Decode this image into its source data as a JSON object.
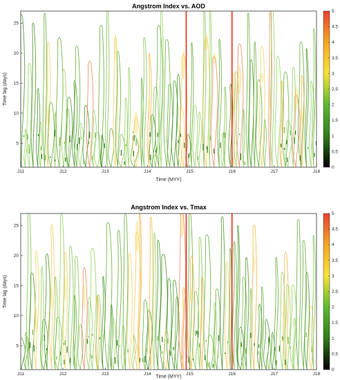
{
  "chart_data": [
    {
      "type": "heatmap",
      "subtype": "contour",
      "title": "Angstrom Index vs. AOD",
      "xlabel": "Time (MYY)",
      "ylabel": "Time lag (days)",
      "x_ticks": [
        "J11",
        "J12",
        "J13",
        "J14",
        "J15",
        "J16",
        "J17",
        "J18"
      ],
      "y_ticks": [
        5,
        10,
        15,
        20,
        25
      ],
      "ylim": [
        1,
        27
      ],
      "colorbar": {
        "range": [
          0,
          5
        ],
        "ticks": [
          "0",
          "0.5",
          "1",
          "1.5",
          "2",
          "2.5",
          "3",
          "3.5",
          "4",
          "4.5",
          "5"
        ],
        "colors": [
          "#000000",
          "#2e7d18",
          "#5cb82e",
          "#f7e23a",
          "#f5a623",
          "#e8412c"
        ]
      },
      "markers": [
        {
          "at": "J15",
          "offset_months": -1,
          "color": "#e8412c"
        },
        {
          "at": "J16",
          "offset_months": 0,
          "color": "#e8412c"
        }
      ],
      "contour_seed": 7
    },
    {
      "type": "heatmap",
      "subtype": "contour",
      "title": "Angstrom Index vs. Tmax",
      "xlabel": "Time (MYY)",
      "ylabel": "Time lag (days)",
      "x_ticks": [
        "J11",
        "J12",
        "J13",
        "J14",
        "J15",
        "J16",
        "J17",
        "J18"
      ],
      "y_ticks": [
        5,
        10,
        15,
        20,
        25
      ],
      "ylim": [
        1,
        27
      ],
      "colorbar": {
        "range": [
          0,
          5
        ],
        "ticks": [
          "0",
          "0.5",
          "1",
          "1.5",
          "2",
          "2.5",
          "3",
          "3.5",
          "4",
          "4.5",
          "5"
        ],
        "colors": [
          "#000000",
          "#2e7d18",
          "#5cb82e",
          "#f7e23a",
          "#f5a623",
          "#e8412c"
        ]
      },
      "markers": [
        {
          "at": "J15",
          "offset_months": -1,
          "color": "#e8412c"
        },
        {
          "at": "J16",
          "offset_months": 0,
          "color": "#e8412c"
        }
      ],
      "contour_seed": 19
    }
  ]
}
